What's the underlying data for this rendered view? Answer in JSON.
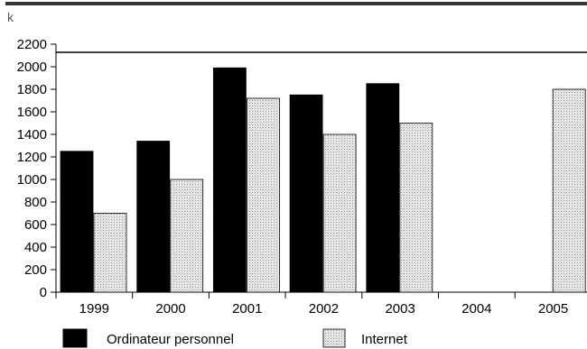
{
  "chart_data": {
    "type": "bar",
    "title": "",
    "xlabel": "",
    "ylabel": "k",
    "categories": [
      "1999",
      "2000",
      "2001",
      "2002",
      "2003",
      "2004",
      "2005"
    ],
    "series": [
      {
        "name": "Ordinateur personnel",
        "values": [
          1250,
          1340,
          1990,
          1750,
          1850,
          null,
          null
        ],
        "color": "#000000",
        "fill": "solid"
      },
      {
        "name": "Internet",
        "values": [
          700,
          1000,
          1720,
          1400,
          1500,
          null,
          1800
        ],
        "color": "#d8d8d8",
        "fill": "dotted"
      }
    ],
    "ylim": [
      0,
      2200
    ],
    "yticks": [
      "0",
      "200",
      "400",
      "600",
      "800",
      "1000",
      "1200",
      "1400",
      "1600",
      "1800",
      "2000",
      "2200"
    ],
    "grid": false,
    "legend_position": "bottom"
  }
}
